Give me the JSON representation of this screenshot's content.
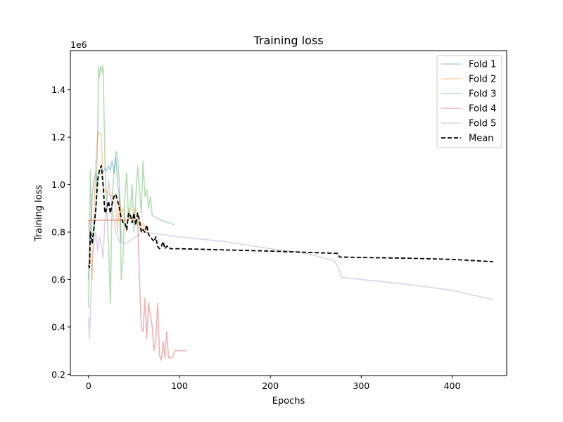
{
  "chart_data": {
    "type": "line",
    "title": "Training loss",
    "xlabel": "Epochs",
    "ylabel": "Training loss",
    "y_offset_text": "1e6",
    "xlim": [
      -20,
      460
    ],
    "ylim": [
      0.195,
      1.565
    ],
    "xticks": [
      0,
      100,
      200,
      300,
      400
    ],
    "yticks": [
      0.2,
      0.4,
      0.6,
      0.8,
      1.0,
      1.2,
      1.4
    ],
    "xtick_labels": [
      "0",
      "100",
      "200",
      "300",
      "400"
    ],
    "ytick_labels": [
      "0.2",
      "0.4",
      "0.6",
      "0.8",
      "1.0",
      "1.2",
      "1.4"
    ],
    "grid": false,
    "legend_position": "top-right",
    "series": [
      {
        "name": "Fold 1",
        "color": "#1f77b4",
        "opacity": 0.35,
        "style": "solid",
        "x": [
          0,
          2,
          4,
          6,
          8,
          10,
          12,
          14,
          16,
          18,
          20,
          22,
          24,
          26,
          28,
          30,
          32,
          34,
          36
        ],
        "y": [
          0.6,
          0.8,
          0.95,
          1.02,
          1.05,
          1.0,
          1.06,
          1.07,
          1.05,
          1.07,
          1.06,
          1.08,
          1.06,
          1.1,
          1.05,
          1.12,
          1.0,
          0.95,
          0.76
        ]
      },
      {
        "name": "Fold 2",
        "color": "#ff7f0e",
        "opacity": 0.35,
        "style": "solid",
        "x": [
          0,
          2,
          4,
          6,
          8,
          10,
          12,
          14,
          16,
          18,
          20,
          22,
          24,
          26,
          28,
          30,
          32,
          34,
          36,
          38,
          40,
          42,
          44,
          46,
          48,
          50,
          52,
          54,
          56,
          58,
          60,
          62,
          64,
          66
        ],
        "y": [
          0.85,
          0.7,
          0.6,
          0.9,
          1.1,
          1.22,
          1.22,
          1.21,
          1.0,
          0.97,
          0.97,
          0.96,
          0.96,
          0.95,
          0.95,
          0.9,
          0.8,
          0.95,
          0.88,
          0.9,
          0.85,
          0.8,
          0.9,
          0.87,
          0.84,
          0.88,
          0.9,
          0.86,
          0.82,
          0.8,
          0.84,
          0.82,
          0.8,
          0.79
        ]
      },
      {
        "name": "Fold 3",
        "color": "#2ca02c",
        "opacity": 0.35,
        "style": "solid",
        "x": [
          0,
          2,
          4,
          6,
          8,
          10,
          11,
          12,
          13,
          14,
          15,
          16,
          17,
          18,
          20,
          22,
          24,
          26,
          28,
          30,
          32,
          34,
          36,
          38,
          40,
          42,
          44,
          46,
          48,
          50,
          52,
          54,
          56,
          58,
          60,
          62,
          64,
          66,
          68,
          70,
          80,
          95
        ],
        "y": [
          0.48,
          1.06,
          0.75,
          0.8,
          0.9,
          1.2,
          1.5,
          1.45,
          1.49,
          1.5,
          1.47,
          1.5,
          1.3,
          1.1,
          0.9,
          0.75,
          0.5,
          0.95,
          1.05,
          1.14,
          1.12,
          1.0,
          0.6,
          0.7,
          0.95,
          1.05,
          0.85,
          0.9,
          1.0,
          0.8,
          0.95,
          1.08,
          0.98,
          0.88,
          1.1,
          0.95,
          0.98,
          0.9,
          0.95,
          0.87,
          0.85,
          0.83
        ]
      },
      {
        "name": "Fold 4",
        "color": "#d62728",
        "opacity": 0.35,
        "style": "solid",
        "x": [
          0,
          20,
          40,
          50,
          54,
          56,
          58,
          60,
          62,
          64,
          66,
          68,
          70,
          72,
          74,
          76,
          78,
          80,
          82,
          84,
          86,
          88,
          90,
          92,
          95,
          100,
          108
        ],
        "y": [
          0.85,
          0.85,
          0.85,
          0.86,
          0.85,
          0.6,
          0.4,
          0.38,
          0.52,
          0.35,
          0.5,
          0.45,
          0.4,
          0.3,
          0.35,
          0.5,
          0.28,
          0.26,
          0.34,
          0.27,
          0.38,
          0.27,
          0.27,
          0.27,
          0.3,
          0.3,
          0.3
        ]
      },
      {
        "name": "Fold 5",
        "color": "#9467bd",
        "opacity": 0.3,
        "style": "solid",
        "x": [
          0,
          1,
          2,
          4,
          6,
          8,
          10,
          12,
          14,
          16,
          18,
          20,
          22,
          24,
          26,
          28,
          30,
          32,
          34,
          40,
          60,
          100,
          150,
          200,
          240,
          270,
          275,
          278,
          300,
          350,
          400,
          445
        ],
        "y": [
          0.44,
          0.35,
          0.45,
          0.7,
          0.75,
          0.8,
          0.72,
          0.78,
          0.75,
          0.69,
          0.85,
          0.9,
          1.02,
          0.95,
          0.9,
          0.85,
          0.8,
          0.78,
          0.76,
          0.75,
          0.8,
          0.78,
          0.76,
          0.73,
          0.71,
          0.68,
          0.65,
          0.61,
          0.6,
          0.58,
          0.555,
          0.515
        ]
      },
      {
        "name": "Mean",
        "color": "#000000",
        "opacity": 1,
        "style": "dashed",
        "x": [
          0,
          1,
          2,
          3,
          4,
          6,
          8,
          10,
          12,
          14,
          16,
          18,
          20,
          22,
          24,
          26,
          28,
          30,
          32,
          34,
          36,
          38,
          40,
          42,
          44,
          46,
          48,
          50,
          52,
          54,
          56,
          58,
          60,
          62,
          64,
          66,
          68,
          70,
          72,
          74,
          76,
          78,
          80,
          82,
          84,
          86,
          88,
          90,
          100,
          150,
          200,
          274,
          276,
          300,
          350,
          400,
          445
        ],
        "y": [
          0.66,
          0.65,
          0.8,
          0.78,
          0.75,
          0.82,
          0.9,
          1.02,
          1.06,
          1.08,
          1.0,
          0.88,
          0.9,
          0.93,
          0.88,
          0.92,
          0.95,
          0.96,
          0.93,
          0.9,
          0.86,
          0.84,
          0.84,
          0.81,
          0.88,
          0.87,
          0.84,
          0.88,
          0.83,
          0.88,
          0.85,
          0.8,
          0.81,
          0.8,
          0.83,
          0.79,
          0.78,
          0.77,
          0.76,
          0.78,
          0.74,
          0.73,
          0.74,
          0.76,
          0.73,
          0.74,
          0.74,
          0.73,
          0.73,
          0.725,
          0.72,
          0.71,
          0.695,
          0.693,
          0.69,
          0.685,
          0.675
        ]
      }
    ]
  }
}
